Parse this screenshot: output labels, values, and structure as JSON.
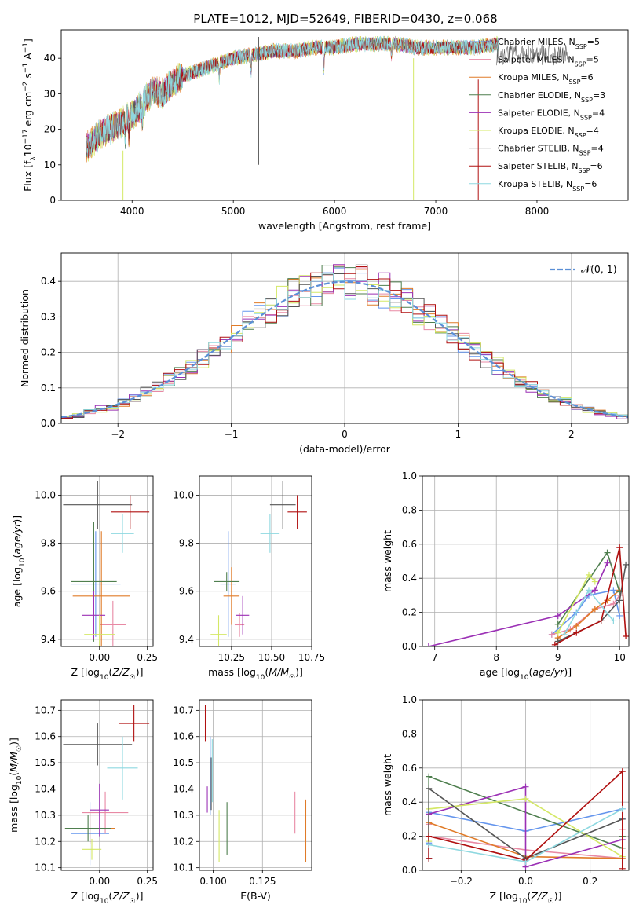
{
  "title": "PLATE=1012, MJD=52649, FIBERID=0430, z=0.068",
  "colors": [
    "#6495ed",
    "#e889a4",
    "#e07b28",
    "#4f7f4f",
    "#9b30b5",
    "#d4e866",
    "#555555",
    "#b01010",
    "#8ed8e0"
  ],
  "legend_spectrum": [
    {
      "pre": "Chabrier MILES, N",
      "sub": "SSP",
      "post": "=5"
    },
    {
      "pre": "Salpeter MILES, N",
      "sub": "SSP",
      "post": "=5"
    },
    {
      "pre": "Kroupa MILES, N",
      "sub": "SSP",
      "post": "=6"
    },
    {
      "pre": "Chabrier ELODIE, N",
      "sub": "SSP",
      "post": "=3"
    },
    {
      "pre": "Salpeter ELODIE, N",
      "sub": "SSP",
      "post": "=4"
    },
    {
      "pre": "Kroupa ELODIE, N",
      "sub": "SSP",
      "post": "=4"
    },
    {
      "pre": "Chabrier STELIB, N",
      "sub": "SSP",
      "post": "=4"
    },
    {
      "pre": "Salpeter STELIB, N",
      "sub": "SSP",
      "post": "=6"
    },
    {
      "pre": "Kroupa STELIB, N",
      "sub": "SSP",
      "post": "=6"
    }
  ],
  "legend_normal": "𝒩(0, 1)",
  "chart_data": [
    {
      "id": "spectrum",
      "type": "line",
      "xlabel": "wavelength [Angstrom, rest frame]",
      "ylabel": "Flux [f_λ 10^-17 erg cm^-2 s^-1 A^-1]",
      "xlim": [
        3300,
        8900
      ],
      "ylim": [
        0,
        48
      ],
      "xticks": [
        4000,
        5000,
        6000,
        7000,
        8000
      ],
      "yticks": [
        0,
        10,
        20,
        30,
        40
      ],
      "x": [
        3550,
        3700,
        3850,
        4000,
        4100,
        4200,
        4300,
        4400,
        4500,
        4600,
        4800,
        5000,
        5200,
        5400,
        5600,
        5800,
        6000,
        6200,
        6400,
        6600,
        6800,
        7000,
        7200,
        7400,
        7600
      ],
      "flux": [
        15,
        19,
        21,
        24,
        27,
        31,
        30,
        33,
        35,
        36,
        38,
        40,
        41,
        42,
        42,
        43,
        43,
        44,
        44,
        44,
        43,
        43,
        43,
        43,
        44
      ],
      "legend": "top-right"
    },
    {
      "id": "residuals",
      "type": "line",
      "xlabel": "(data-model)/error",
      "ylabel": "Normed distribution",
      "xlim": [
        -2.5,
        2.5
      ],
      "ylim": [
        0,
        0.48
      ],
      "xticks": [
        -2,
        -1,
        0,
        1,
        2
      ],
      "yticks": [
        0.0,
        0.1,
        0.2,
        0.3,
        0.4
      ],
      "series": [
        {
          "name": "𝒩(0, 1)",
          "mean": 0,
          "sigma": 1
        }
      ],
      "bin_width": 0.1,
      "grid": true,
      "legend": "top-right"
    },
    {
      "id": "age_vs_Z",
      "type": "scatter",
      "xlabel": "Z [log10(Z/Z☉)]",
      "ylabel": "age  [log10(age/yr)]",
      "xlim": [
        -0.2,
        0.28
      ],
      "ylim": [
        9.37,
        10.08
      ],
      "xticks": [
        0.0,
        0.25
      ],
      "xticklabels": [
        "0.00",
        "0.25"
      ],
      "yticks": [
        9.4,
        9.6,
        9.8,
        10.0
      ],
      "yticklabels": [
        "9.4",
        "9.6",
        "9.8",
        "10.0"
      ],
      "points": [
        {
          "x": -0.02,
          "y": 9.63,
          "xerr": 0.13,
          "yerr": 0.22
        },
        {
          "x": 0.07,
          "y": 9.46,
          "xerr": 0.07,
          "yerr": 0.1
        },
        {
          "x": 0.01,
          "y": 9.58,
          "xerr": 0.15,
          "yerr": 0.27
        },
        {
          "x": -0.03,
          "y": 9.64,
          "xerr": 0.12,
          "yerr": 0.25
        },
        {
          "x": -0.03,
          "y": 9.5,
          "xerr": 0.06,
          "yerr": 0.1
        },
        {
          "x": 0.0,
          "y": 9.42,
          "xerr": 0.08,
          "yerr": 0.08
        },
        {
          "x": -0.01,
          "y": 9.96,
          "xerr": 0.18,
          "yerr": 0.1
        },
        {
          "x": 0.16,
          "y": 9.93,
          "xerr": 0.1,
          "yerr": 0.07
        },
        {
          "x": 0.12,
          "y": 9.84,
          "xerr": 0.06,
          "yerr": 0.08
        }
      ]
    },
    {
      "id": "age_vs_mass",
      "type": "scatter",
      "xlabel": "mass [log10(M/M☉)]",
      "ylabel": "",
      "xlim": [
        10.05,
        10.75
      ],
      "ylim": [
        9.37,
        10.08
      ],
      "xticks": [
        10.25,
        10.5,
        10.75
      ],
      "xticklabels": [
        "10.25",
        "10.50",
        "10.75"
      ],
      "yticks": [
        9.4,
        9.6,
        9.8,
        10.0
      ],
      "yticklabels": [
        "9.4",
        "9.6",
        "9.8",
        "10.0"
      ],
      "points": [
        {
          "x": 10.23,
          "y": 9.63,
          "xerr": 0.05,
          "yerr": 0.22
        },
        {
          "x": 10.3,
          "y": 9.46,
          "xerr": 0.03,
          "yerr": 0.05
        },
        {
          "x": 10.25,
          "y": 9.58,
          "xerr": 0.05,
          "yerr": 0.12
        },
        {
          "x": 10.22,
          "y": 9.64,
          "xerr": 0.08,
          "yerr": 0.04
        },
        {
          "x": 10.32,
          "y": 9.5,
          "xerr": 0.04,
          "yerr": 0.08
        },
        {
          "x": 10.17,
          "y": 9.42,
          "xerr": 0.05,
          "yerr": 0.08
        },
        {
          "x": 10.57,
          "y": 9.96,
          "xerr": 0.08,
          "yerr": 0.1
        },
        {
          "x": 10.66,
          "y": 9.93,
          "xerr": 0.06,
          "yerr": 0.07
        },
        {
          "x": 10.49,
          "y": 9.84,
          "xerr": 0.06,
          "yerr": 0.08
        }
      ]
    },
    {
      "id": "massweight_vs_age",
      "type": "line",
      "xlabel": "age  [log10(age/yr)]",
      "ylabel": "mass weight",
      "xlim": [
        6.8,
        10.15
      ],
      "ylim": [
        0,
        1.0
      ],
      "xticks": [
        7,
        8,
        9,
        10
      ],
      "yticks": [
        0.0,
        0.2,
        0.4,
        0.6,
        0.8,
        1.0
      ],
      "series": [
        {
          "x": [
            8.9,
            9.3,
            9.5,
            9.9,
            10.0
          ],
          "y": [
            0.07,
            0.2,
            0.3,
            0.33,
            0.18
          ]
        },
        {
          "x": [
            8.9,
            9.2,
            9.6,
            9.9,
            10.0
          ],
          "y": [
            0.07,
            0.1,
            0.22,
            0.25,
            0.3
          ]
        },
        {
          "x": [
            9.0,
            9.3,
            9.6,
            9.8,
            10.0
          ],
          "y": [
            0.05,
            0.12,
            0.22,
            0.27,
            0.33
          ]
        },
        {
          "x": [
            9.0,
            9.8,
            10.0
          ],
          "y": [
            0.13,
            0.55,
            0.32
          ]
        },
        {
          "x": [
            6.9,
            9.0,
            9.6,
            9.8
          ],
          "y": [
            0.0,
            0.18,
            0.33,
            0.49
          ]
        },
        {
          "x": [
            9.0,
            9.5,
            9.6
          ],
          "y": [
            0.08,
            0.42,
            0.38
          ]
        },
        {
          "x": [
            9.0,
            9.7,
            10.0,
            10.1
          ],
          "y": [
            0.03,
            0.15,
            0.27,
            0.48
          ]
        },
        {
          "x": [
            8.95,
            9.3,
            9.7,
            10.0,
            10.1
          ],
          "y": [
            0.01,
            0.08,
            0.15,
            0.58,
            0.06
          ]
        },
        {
          "x": [
            9.1,
            9.5,
            9.9
          ],
          "y": [
            0.07,
            0.33,
            0.15
          ]
        }
      ]
    },
    {
      "id": "mass_vs_Z",
      "type": "scatter",
      "xlabel": "Z [log10(Z/Z☉)]",
      "ylabel": "mass [log10(M/M☉)]",
      "xlim": [
        -0.2,
        0.28
      ],
      "ylim": [
        10.09,
        10.74
      ],
      "xticks": [
        0.0,
        0.25
      ],
      "xticklabels": [
        "0.00",
        "0.25"
      ],
      "yticks": [
        10.1,
        10.2,
        10.3,
        10.4,
        10.5,
        10.6,
        10.7
      ],
      "points": [
        {
          "x": -0.05,
          "y": 10.23,
          "xerr": 0.1,
          "yerr": 0.12
        },
        {
          "x": 0.03,
          "y": 10.31,
          "xerr": 0.12,
          "yerr": 0.08
        },
        {
          "x": -0.05,
          "y": 10.25,
          "xerr": 0.13,
          "yerr": 0.06
        },
        {
          "x": -0.06,
          "y": 10.25,
          "xerr": 0.12,
          "yerr": 0.05
        },
        {
          "x": 0.0,
          "y": 10.32,
          "xerr": 0.05,
          "yerr": 0.1
        },
        {
          "x": -0.04,
          "y": 10.17,
          "xerr": 0.05,
          "yerr": 0.04
        },
        {
          "x": -0.01,
          "y": 10.57,
          "xerr": 0.18,
          "yerr": 0.08
        },
        {
          "x": 0.18,
          "y": 10.65,
          "xerr": 0.08,
          "yerr": 0.07
        },
        {
          "x": 0.12,
          "y": 10.48,
          "xerr": 0.08,
          "yerr": 0.12
        }
      ]
    },
    {
      "id": "mass_vs_EBV",
      "type": "scatter",
      "xlabel": "E(B-V)",
      "ylabel": "",
      "xlim": [
        0.093,
        0.15
      ],
      "ylim": [
        10.09,
        10.74
      ],
      "xticks": [
        0.1,
        0.125
      ],
      "xticklabels": [
        "0.100",
        "0.125"
      ],
      "yticks": [
        10.1,
        10.2,
        10.3,
        10.4,
        10.5,
        10.6,
        10.7
      ],
      "points": [
        {
          "x": 0.0985,
          "y": 10.45,
          "xerr": 0,
          "yerr": 0.15
        },
        {
          "x": 0.1415,
          "y": 10.31,
          "xerr": 0,
          "yerr": 0.08
        },
        {
          "x": 0.147,
          "y": 10.24,
          "xerr": 0,
          "yerr": 0.12
        },
        {
          "x": 0.107,
          "y": 10.25,
          "xerr": 0,
          "yerr": 0.1
        },
        {
          "x": 0.097,
          "y": 10.36,
          "xerr": 0,
          "yerr": 0.05
        },
        {
          "x": 0.103,
          "y": 10.22,
          "xerr": 0,
          "yerr": 0.1
        },
        {
          "x": 0.099,
          "y": 10.42,
          "xerr": 0,
          "yerr": 0.1
        },
        {
          "x": 0.096,
          "y": 10.65,
          "xerr": 0,
          "yerr": 0.07
        },
        {
          "x": 0.0995,
          "y": 10.47,
          "xerr": 0,
          "yerr": 0.12
        }
      ]
    },
    {
      "id": "massweight_vs_Z",
      "type": "line",
      "xlabel": "Z [log10(Z/Z☉)]",
      "ylabel": "mass weight",
      "xlim": [
        -0.32,
        0.32
      ],
      "ylim": [
        0,
        1.0
      ],
      "xticks": [
        -0.2,
        0.0,
        0.2
      ],
      "xticklabels": [
        "−0.2",
        "0.0",
        "0.2"
      ],
      "yticks": [
        0.0,
        0.2,
        0.4,
        0.6,
        0.8,
        1.0
      ],
      "series": [
        {
          "x": [
            -0.3,
            -0.3,
            0.0,
            0.3,
            0.3
          ],
          "y": [
            0.16,
            0.34,
            0.23,
            0.36,
            0.3
          ]
        },
        {
          "x": [
            -0.3,
            -0.3,
            0.0,
            0.3,
            0.3
          ],
          "y": [
            0.27,
            0.2,
            0.12,
            0.07,
            0.24
          ]
        },
        {
          "x": [
            -0.3,
            -0.3,
            0.0,
            0.3,
            0.3
          ],
          "y": [
            0.07,
            0.28,
            0.08,
            0.07,
            0.2
          ]
        },
        {
          "x": [
            -0.3,
            -0.3,
            0.3,
            0.3
          ],
          "y": [
            0.15,
            0.55,
            0.13,
            0.2
          ]
        },
        {
          "x": [
            -0.3,
            -0.3,
            0.0,
            0.0,
            0.3
          ],
          "y": [
            0.07,
            0.33,
            0.49,
            0.02,
            0.18
          ]
        },
        {
          "x": [
            -0.3,
            -0.3,
            0.0,
            0.3
          ],
          "y": [
            0.17,
            0.36,
            0.42,
            0.08
          ]
        },
        {
          "x": [
            -0.3,
            -0.3,
            0.0,
            0.0,
            0.3
          ],
          "y": [
            0.07,
            0.48,
            0.07,
            0.07,
            0.3
          ]
        },
        {
          "x": [
            -0.3,
            -0.3,
            0.0,
            0.3,
            0.3
          ],
          "y": [
            0.07,
            0.2,
            0.06,
            0.58,
            0.01
          ]
        },
        {
          "x": [
            -0.3,
            -0.3,
            0.0,
            0.0,
            0.3
          ],
          "y": [
            0.15,
            0.15,
            0.05,
            0.05,
            0.36
          ]
        }
      ]
    }
  ]
}
